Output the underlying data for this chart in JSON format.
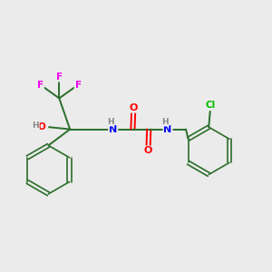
{
  "background_color": "#ebebeb",
  "atom_colors": {
    "F": "#ee00ee",
    "O": "#ff0000",
    "N": "#0000ff",
    "Cl": "#00bb00",
    "C": "#2a6e2a",
    "H": "#888888"
  },
  "bond_color": "#2a6e2a",
  "figsize": [
    3.0,
    3.0
  ],
  "dpi": 100
}
